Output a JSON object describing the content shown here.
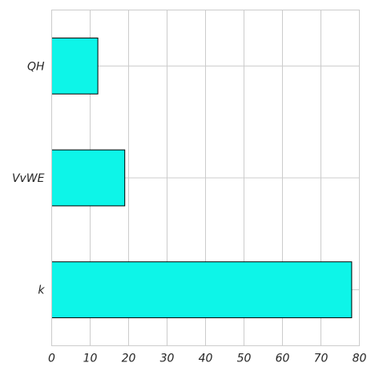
{
  "chart_data": {
    "type": "bar",
    "orientation": "horizontal",
    "categories": [
      "QH",
      "VvWE",
      "k"
    ],
    "values": [
      12,
      19,
      78
    ],
    "xlim": [
      0,
      80
    ],
    "xticks": [
      0,
      10,
      20,
      30,
      40,
      50,
      60,
      70,
      80
    ],
    "grid": true,
    "bar_color": "#0df5e8",
    "edge_color": "#000000",
    "title": "",
    "xlabel": "",
    "ylabel": ""
  }
}
